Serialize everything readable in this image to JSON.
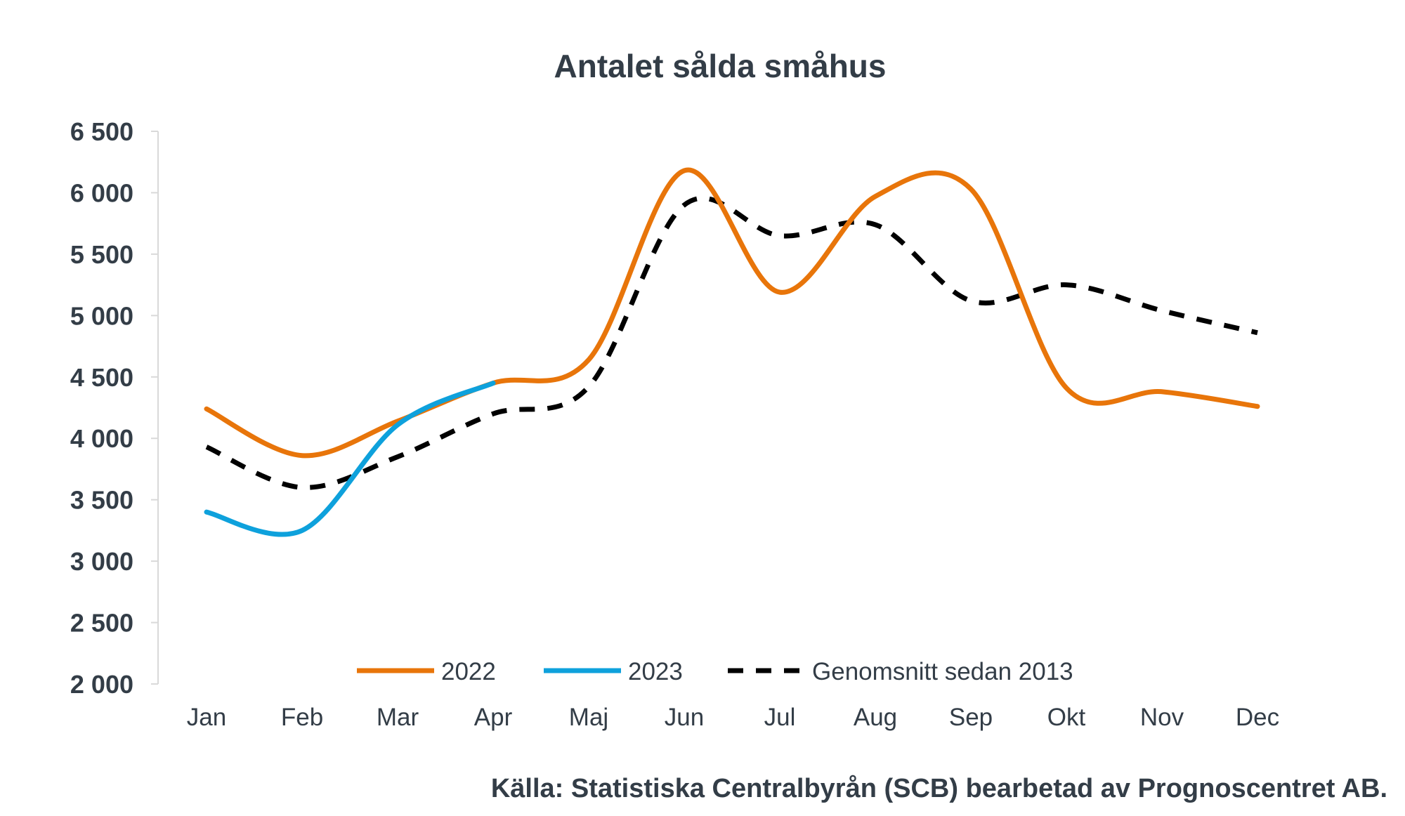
{
  "chart_data": {
    "type": "line",
    "title": "Antalet sålda småhus",
    "xlabel": "",
    "ylabel": "",
    "categories": [
      "Jan",
      "Feb",
      "Mar",
      "Apr",
      "Maj",
      "Jun",
      "Jul",
      "Aug",
      "Sep",
      "Okt",
      "Nov",
      "Dec"
    ],
    "ylim": [
      2000,
      6500
    ],
    "yticks": [
      2000,
      2500,
      3000,
      3500,
      4000,
      4500,
      5000,
      5500,
      6000,
      6500
    ],
    "ytick_labels": [
      "2 000",
      "2 500",
      "3 000",
      "3 500",
      "4 000",
      "4 500",
      "5 000",
      "5 500",
      "6 000",
      "6 500"
    ],
    "grid": false,
    "legend_position": "bottom-inside",
    "series": [
      {
        "name": "2022",
        "color": "#e8750a",
        "dashed": false,
        "values": [
          4240,
          3860,
          4140,
          4450,
          4640,
          6180,
          5190,
          5970,
          6030,
          4410,
          4380,
          4260
        ]
      },
      {
        "name": "2023",
        "color": "#0ea1dc",
        "dashed": false,
        "values": [
          3400,
          3250,
          4110,
          4450,
          null,
          null,
          null,
          null,
          null,
          null,
          null,
          null
        ]
      },
      {
        "name": "Genomsnitt sedan 2013",
        "color": "#000000",
        "dashed": true,
        "values": [
          3930,
          3600,
          3850,
          4200,
          4420,
          5900,
          5650,
          5740,
          5120,
          5250,
          5040,
          4860
        ]
      }
    ],
    "source": "Källa: Statistiska Centralbyrån (SCB) bearbetad av Prognoscentret AB."
  }
}
